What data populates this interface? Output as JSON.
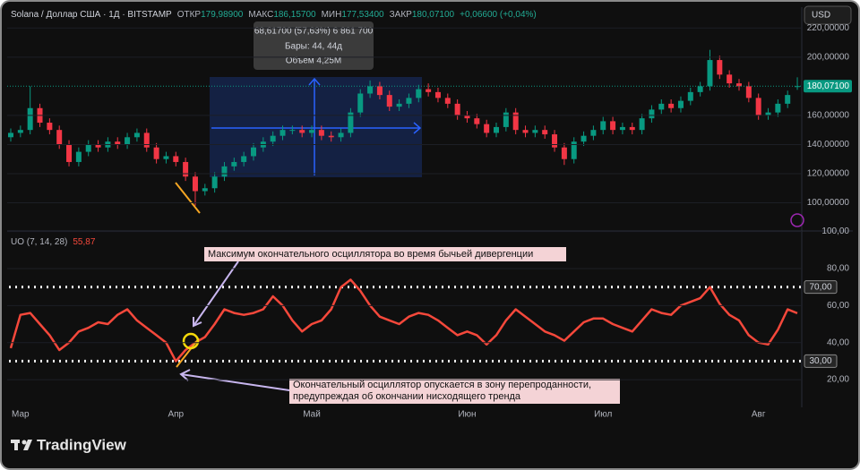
{
  "header": {
    "symbol": "Solana / Доллар США · 1Д · BITSTAMP",
    "fields": [
      {
        "label": "ОТКР",
        "value": "179,98900"
      },
      {
        "label": "МАКС",
        "value": "186,15700"
      },
      {
        "label": "МИН",
        "value": "177,53400"
      },
      {
        "label": "ЗАКР",
        "value": "180,07100"
      }
    ],
    "change": "+0,06600 (+0,04%)",
    "currency": "USD"
  },
  "measure": {
    "lines": [
      "68,61700 (57,63%) 6 861 700",
      "Бары: 44, 44д",
      "Объём 4,25M"
    ]
  },
  "annotations": [
    {
      "lines": [
        "Максимум окончательного осциллятора во время бычьей дивергенции"
      ]
    },
    {
      "lines": [
        "Окончательный осциллятор опускается в зону перепроданности,",
        "предупреждая об окончании нисходящего тренда"
      ]
    }
  ],
  "brand": "TradingView",
  "chart_data": [
    {
      "type": "candlestick",
      "up_color": "#089981",
      "down_color": "#f23645",
      "last_price_label": "180,07100",
      "open": [
        145,
        148,
        150,
        165,
        155,
        150,
        140,
        128,
        135,
        140,
        138,
        142,
        140,
        145,
        148,
        138,
        130,
        132,
        128,
        118,
        108,
        110,
        118,
        125,
        128,
        132,
        138,
        142,
        146,
        150,
        150,
        148,
        150,
        146,
        145,
        148,
        162,
        175,
        180,
        174,
        166,
        168,
        172,
        178,
        176,
        172,
        168,
        160,
        158,
        154,
        148,
        152,
        162,
        150,
        148,
        150,
        147,
        138,
        130,
        142,
        146,
        150,
        156,
        150,
        152,
        150,
        158,
        164,
        168,
        165,
        170,
        176,
        180,
        198,
        188,
        182,
        180,
        172,
        160,
        162,
        168,
        179.989
      ],
      "high": [
        151,
        153,
        180,
        168,
        158,
        153,
        143,
        138,
        143,
        143,
        145,
        145,
        148,
        151,
        151,
        141,
        135,
        135,
        131,
        121,
        113,
        121,
        128,
        131,
        135,
        141,
        145,
        149,
        153,
        153,
        153,
        153,
        153,
        149,
        151,
        165,
        178,
        184,
        183,
        177,
        171,
        175,
        181,
        182,
        179,
        175,
        171,
        163,
        161,
        157,
        155,
        165,
        165,
        153,
        153,
        153,
        150,
        141,
        145,
        149,
        153,
        159,
        159,
        155,
        155,
        161,
        167,
        171,
        171,
        173,
        179,
        183,
        205,
        201,
        191,
        185,
        183,
        175,
        165,
        171,
        177,
        186.157
      ],
      "low": [
        142,
        145,
        147,
        152,
        147,
        137,
        125,
        125,
        132,
        135,
        135,
        137,
        137,
        142,
        135,
        127,
        127,
        125,
        115,
        98,
        105,
        107,
        115,
        122,
        125,
        129,
        135,
        139,
        143,
        147,
        145,
        145,
        143,
        142,
        142,
        145,
        159,
        172,
        171,
        163,
        163,
        165,
        169,
        173,
        169,
        165,
        157,
        155,
        151,
        145,
        145,
        149,
        147,
        145,
        145,
        144,
        135,
        126,
        127,
        139,
        143,
        147,
        147,
        147,
        147,
        147,
        155,
        161,
        162,
        162,
        167,
        173,
        177,
        185,
        179,
        177,
        169,
        157,
        157,
        159,
        165,
        177.534
      ],
      "close": [
        148,
        150,
        165,
        155,
        150,
        140,
        128,
        135,
        140,
        138,
        142,
        140,
        145,
        148,
        138,
        130,
        132,
        128,
        118,
        108,
        110,
        118,
        125,
        128,
        132,
        138,
        142,
        146,
        150,
        150,
        148,
        150,
        146,
        145,
        148,
        162,
        175,
        180,
        174,
        166,
        168,
        172,
        178,
        176,
        172,
        168,
        160,
        158,
        154,
        148,
        152,
        162,
        150,
        148,
        150,
        147,
        138,
        130,
        142,
        146,
        150,
        156,
        150,
        152,
        150,
        158,
        164,
        168,
        165,
        170,
        176,
        180,
        198,
        188,
        182,
        180,
        172,
        160,
        162,
        168,
        174,
        180.071
      ],
      "ylim": [
        82.5,
        230
      ],
      "yticks": [
        {
          "value": 100,
          "label": "100,00000"
        },
        {
          "value": 120,
          "label": "120,00000"
        },
        {
          "value": 140,
          "label": "140,00000"
        },
        {
          "value": 160,
          "label": "160,00000"
        },
        {
          "value": 200,
          "label": "200,00000"
        },
        {
          "value": 220,
          "label": "220,00000"
        }
      ]
    },
    {
      "type": "line",
      "title": "UO (7, 14, 28)",
      "value_label": "55,87",
      "color": "#f5483b",
      "categories": [
        null,
        "Мар",
        null,
        null,
        null,
        null,
        null,
        null,
        null,
        null,
        null,
        null,
        null,
        null,
        null,
        null,
        null,
        "Апр",
        null,
        null,
        null,
        null,
        null,
        null,
        null,
        null,
        null,
        null,
        null,
        null,
        null,
        "Май",
        null,
        null,
        null,
        null,
        null,
        null,
        null,
        null,
        null,
        null,
        null,
        null,
        null,
        null,
        null,
        "Июн",
        null,
        null,
        null,
        null,
        null,
        null,
        null,
        null,
        null,
        null,
        null,
        null,
        null,
        "Июл",
        null,
        null,
        null,
        null,
        null,
        null,
        null,
        null,
        null,
        null,
        null,
        null,
        null,
        null,
        null,
        "Авг",
        null,
        null,
        null,
        null
      ],
      "values": [
        37,
        55,
        56,
        50,
        44,
        36,
        40,
        46,
        48,
        51,
        50,
        55,
        58,
        52,
        48,
        44,
        40,
        30,
        36,
        40,
        43,
        50,
        58,
        56,
        55,
        56,
        58,
        65,
        60,
        52,
        46,
        50,
        52,
        58,
        70,
        74,
        68,
        60,
        54,
        52,
        50,
        54,
        56,
        55,
        52,
        48,
        44,
        46,
        44,
        39,
        44,
        52,
        58,
        54,
        50,
        46,
        44,
        41,
        46,
        51,
        53,
        53,
        50,
        48,
        46,
        52,
        58,
        56,
        55,
        60,
        62,
        64,
        70,
        61,
        55,
        52,
        44,
        40,
        39,
        47,
        58,
        55.87
      ],
      "ylim": [
        6.5,
        100
      ],
      "yticks": [
        {
          "value": 20,
          "label": "20,00"
        },
        {
          "value": 40,
          "label": "40,00"
        },
        {
          "value": 60,
          "label": "60,00"
        },
        {
          "value": 80,
          "label": "80,00"
        },
        {
          "value": 100,
          "label": "100,00"
        }
      ],
      "levels": [
        {
          "value": 70,
          "label": "70,00"
        },
        {
          "value": 30,
          "label": "30,00"
        }
      ]
    }
  ]
}
